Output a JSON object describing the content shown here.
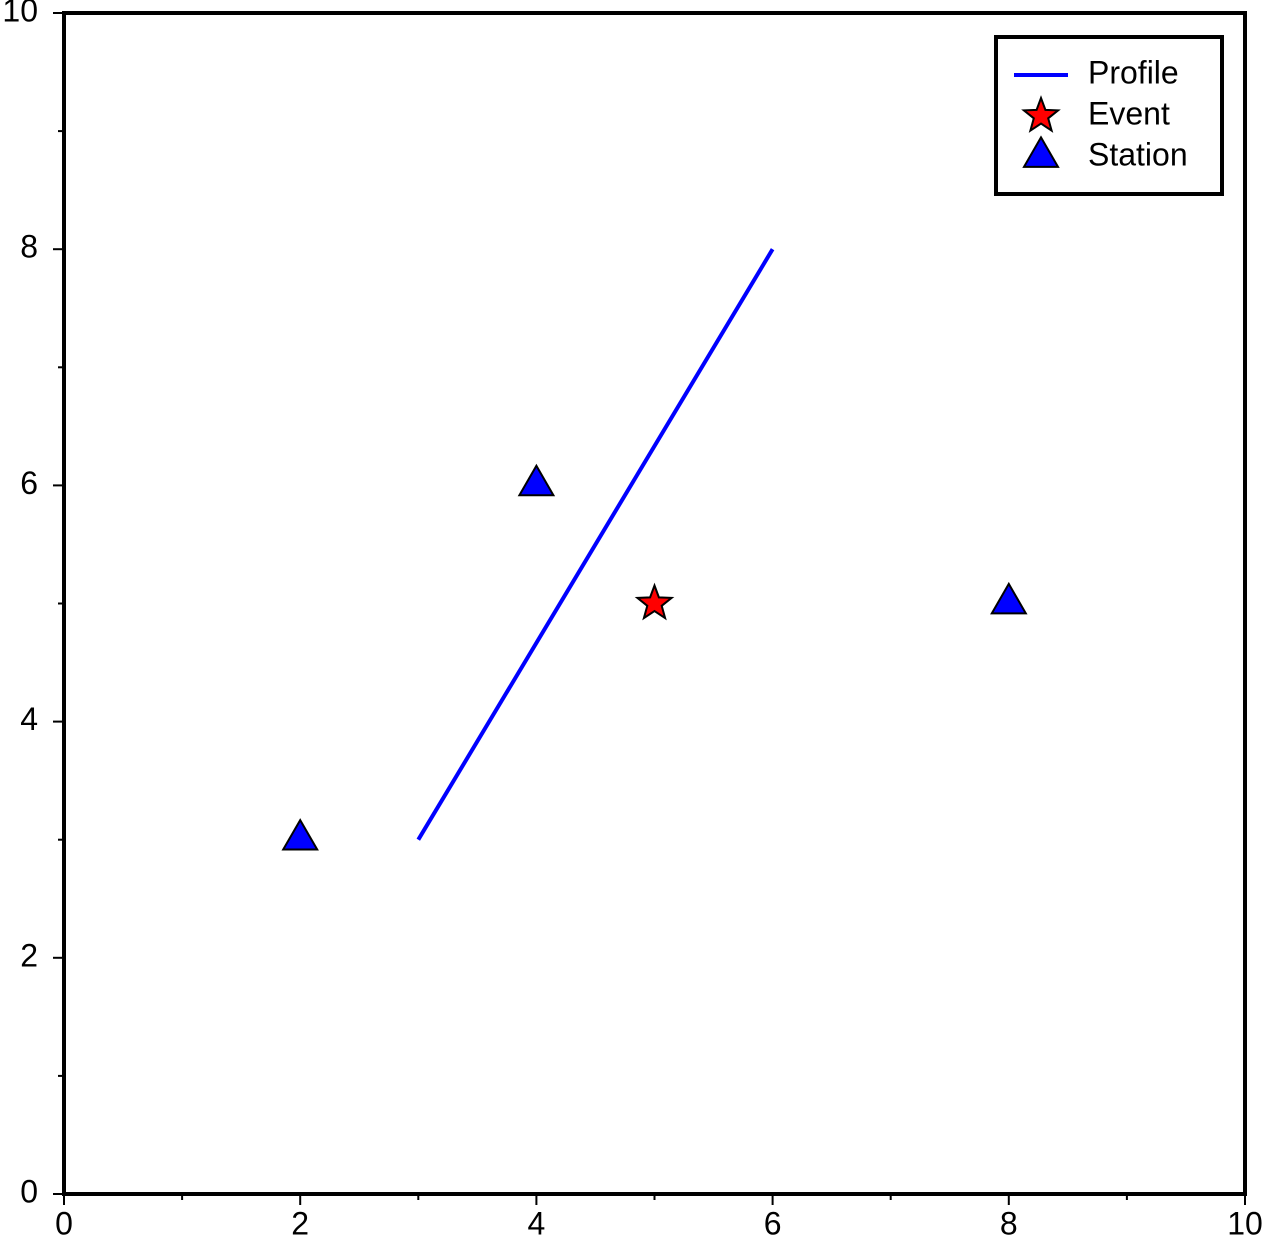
{
  "chart_data": {
    "type": "scatter",
    "xlim": [
      0,
      10
    ],
    "ylim": [
      0,
      10
    ],
    "xticks": [
      0,
      2,
      4,
      6,
      8,
      10
    ],
    "yticks": [
      0,
      2,
      4,
      6,
      8,
      10
    ],
    "xminorticks": [
      1,
      3,
      5,
      7,
      9
    ],
    "yminorticks": [
      1,
      3,
      5,
      7,
      9
    ],
    "legend": "upper right",
    "series": [
      {
        "name": "Profile",
        "type": "line",
        "color": "#0000ff",
        "x": [
          3,
          6
        ],
        "values": [
          3,
          8
        ]
      },
      {
        "name": "Event",
        "type": "scatter",
        "marker": "star",
        "color": "#ff0000",
        "x": [
          5
        ],
        "values": [
          5
        ]
      },
      {
        "name": "Station",
        "type": "scatter",
        "marker": "triangle",
        "color": "#0000ff",
        "x": [
          2,
          4,
          8
        ],
        "values": [
          3,
          6,
          5
        ]
      }
    ]
  }
}
